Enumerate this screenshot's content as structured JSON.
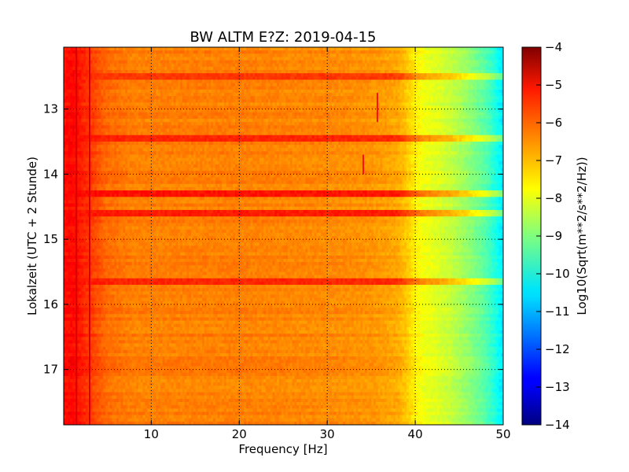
{
  "chart_data": {
    "type": "heatmap",
    "title": "BW ALTM E?Z: 2019-04-15",
    "xlabel": "Frequency [Hz]",
    "ylabel": "Lokalzeit (UTC + 2 Stunde)",
    "xlim": [
      0.05,
      50
    ],
    "ylim": [
      17.85,
      12.05
    ],
    "y_inverted": true,
    "grid": true,
    "x_ticks": [
      10,
      20,
      30,
      40,
      50
    ],
    "x_tick_labels": [
      "10",
      "20",
      "30",
      "40",
      "50"
    ],
    "y_ticks": [
      13,
      14,
      15,
      16,
      17
    ],
    "y_tick_labels": [
      "13",
      "14",
      "15",
      "16",
      "17"
    ],
    "colorbar": {
      "label": "Log10(Sqrt(m**2/s**2/Hz))",
      "min": -14,
      "max": -4,
      "ticks": [
        -4,
        -5,
        -6,
        -7,
        -8,
        -9,
        -10,
        -11,
        -12,
        -13,
        -14
      ],
      "tick_labels": [
        "−4",
        "−5",
        "−6",
        "−7",
        "−8",
        "−9",
        "−10",
        "−11",
        "−12",
        "−13",
        "−14"
      ],
      "colormap": "jet"
    },
    "spectral_profile": {
      "frequency_hz": [
        0,
        1,
        2,
        3,
        5,
        8,
        10,
        20,
        30,
        35,
        38,
        39,
        40,
        41,
        42,
        44,
        46,
        48,
        49,
        50
      ],
      "value": [
        -5.4,
        -5.3,
        -5.5,
        -5.8,
        -6.3,
        -6.5,
        -6.5,
        -6.5,
        -6.6,
        -6.7,
        -6.9,
        -7.2,
        -7.6,
        -7.9,
        -8.0,
        -8.3,
        -8.8,
        -9.4,
        -9.9,
        -10.5
      ]
    },
    "horizontal_bands": [
      {
        "time": 12.5,
        "f_start": 0,
        "f_end": 50,
        "value": -5.7
      },
      {
        "time": 13.45,
        "f_start": 0,
        "f_end": 50,
        "value": -5.5
      },
      {
        "time": 14.3,
        "f_start": 0,
        "f_end": 50,
        "value": -5.3
      },
      {
        "time": 14.6,
        "f_start": 0,
        "f_end": 50,
        "value": -5.4
      },
      {
        "time": 15.65,
        "f_start": 0,
        "f_end": 50,
        "value": -5.5
      }
    ],
    "vertical_streaks": [
      {
        "frequency_hz": 35.7,
        "t_start": 12.75,
        "t_end": 13.2,
        "value": -5.4
      },
      {
        "frequency_hz": 34.1,
        "t_start": 13.7,
        "t_end": 14.0,
        "value": -5.4
      },
      {
        "frequency_hz": 3.0,
        "t_start": 12.05,
        "t_end": 17.85,
        "value": -4.9
      },
      {
        "frequency_hz": 1.5,
        "t_start": 12.05,
        "t_end": 17.85,
        "value": -4.9
      }
    ]
  }
}
